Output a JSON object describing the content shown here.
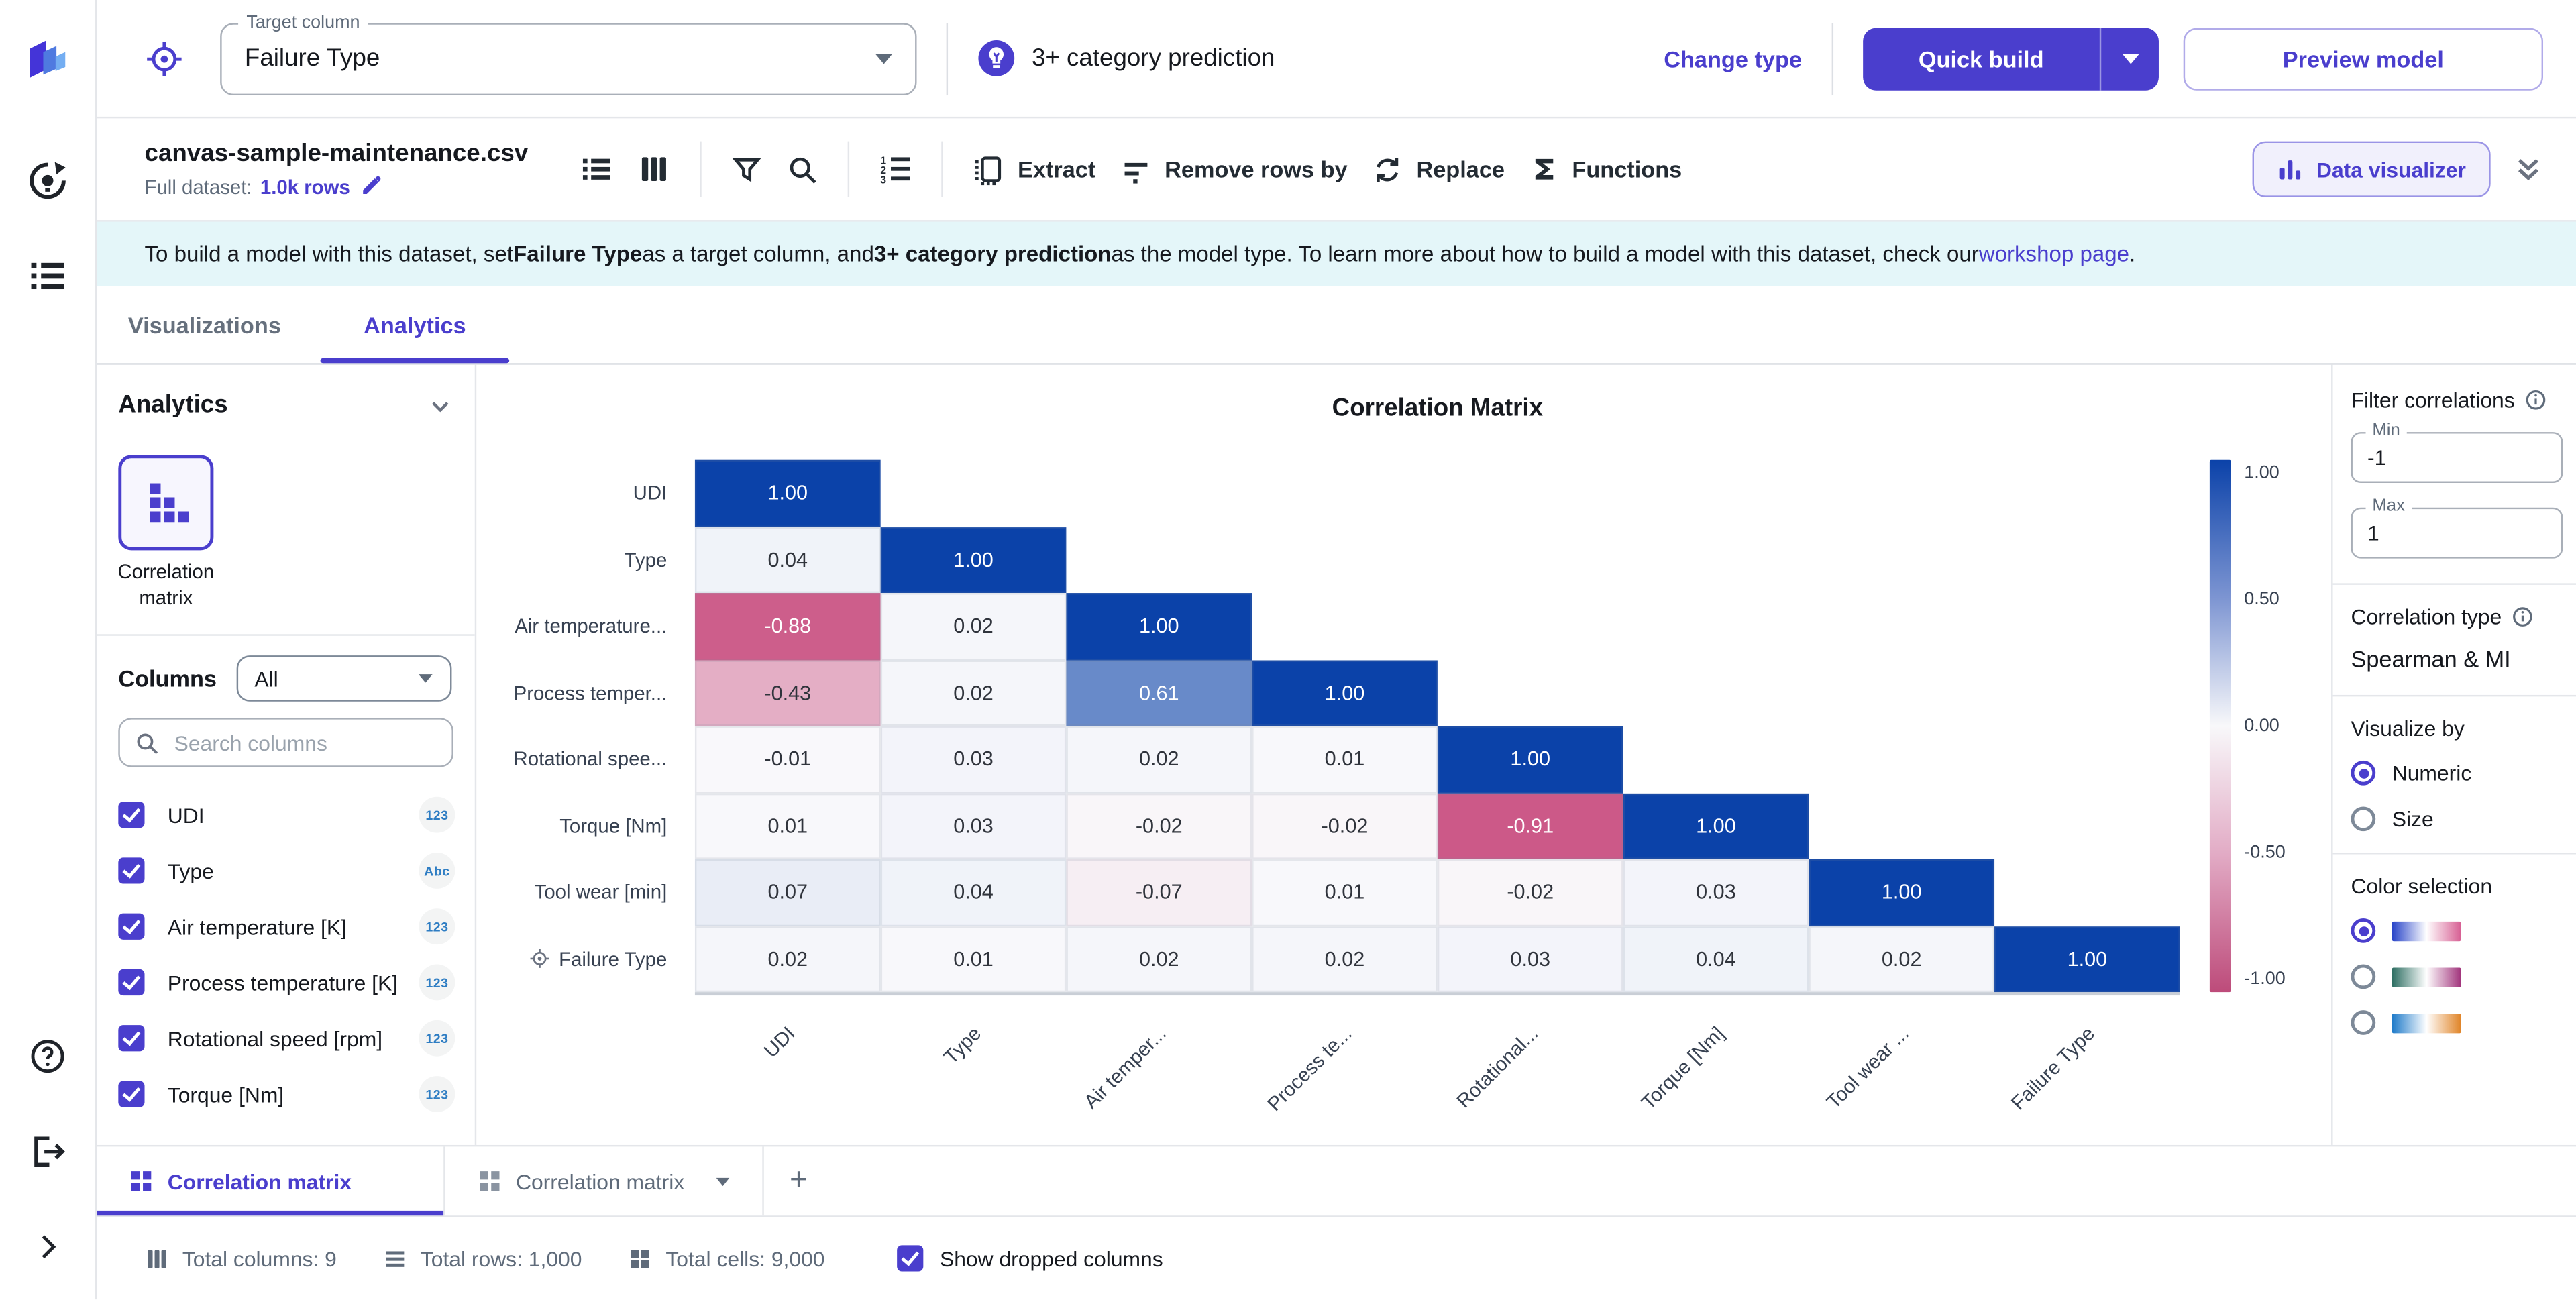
{
  "sidebar": {
    "icons": [
      "canvas-logo",
      "autopilot",
      "datasets-list",
      "help",
      "logout",
      "expand"
    ]
  },
  "header": {
    "target_field": {
      "label": "Target column",
      "value": "Failure Type"
    },
    "model_type": "3+ category prediction",
    "change_type_label": "Change type",
    "quick_build_label": "Quick build",
    "preview_model_label": "Preview model"
  },
  "toolbar": {
    "dataset_name": "canvas-sample-maintenance.csv",
    "full_dataset_label": "Full dataset:",
    "rows_link": "1.0k rows",
    "extract_label": "Extract",
    "remove_rows_label": "Remove rows by",
    "replace_label": "Replace",
    "functions_label": "Functions",
    "data_visualizer_label": "Data visualizer"
  },
  "banner": {
    "segments": [
      {
        "text": "To build a model with this dataset, set ",
        "style": "normal"
      },
      {
        "text": "Failure Type",
        "style": "bold"
      },
      {
        "text": " as a target column, and ",
        "style": "normal"
      },
      {
        "text": "3+ category prediction",
        "style": "bold"
      },
      {
        "text": " as the model type. To learn more about how to build a model with this dataset, check our ",
        "style": "normal"
      },
      {
        "text": "workshop page",
        "style": "link"
      },
      {
        "text": ".",
        "style": "normal"
      }
    ]
  },
  "tabs": [
    {
      "label": "Visualizations",
      "active": false
    },
    {
      "label": "Analytics",
      "active": true
    }
  ],
  "left_panel": {
    "title": "Analytics",
    "card_label": "Correlation matrix",
    "columns_label": "Columns",
    "columns_filter_value": "All",
    "search_placeholder": "Search columns",
    "columns": [
      {
        "name": "UDI",
        "type": "123",
        "checked": true
      },
      {
        "name": "Type",
        "type": "Abc",
        "checked": true
      },
      {
        "name": "Air temperature [K]",
        "type": "123",
        "checked": true
      },
      {
        "name": "Process temperature [K]",
        "type": "123",
        "checked": true
      },
      {
        "name": "Rotational speed [rpm]",
        "type": "123",
        "checked": true
      },
      {
        "name": "Torque [Nm]",
        "type": "123",
        "checked": true
      }
    ]
  },
  "chart_data": {
    "type": "heatmap",
    "title": "Correlation Matrix",
    "row_labels": [
      "UDI",
      "Type",
      "Air temperature...",
      "Process temper...",
      "Rotational spee...",
      "Torque [Nm]",
      "Tool wear [min]",
      "Failure Type"
    ],
    "col_labels": [
      "UDI",
      "Type",
      "Air temper...",
      "Process te...",
      "Rotational...",
      "Torque [Nm]",
      "Tool wear ...",
      "Failure Type"
    ],
    "target_row": "Failure Type",
    "matrix": [
      [
        1.0
      ],
      [
        0.04,
        1.0
      ],
      [
        -0.88,
        0.02,
        1.0
      ],
      [
        -0.43,
        0.02,
        0.61,
        1.0
      ],
      [
        -0.01,
        0.03,
        0.02,
        0.01,
        1.0
      ],
      [
        0.01,
        0.03,
        -0.02,
        -0.02,
        -0.91,
        1.0
      ],
      [
        0.07,
        0.04,
        -0.07,
        0.01,
        -0.02,
        0.03,
        1.0
      ],
      [
        0.02,
        0.01,
        0.02,
        0.02,
        0.03,
        0.04,
        0.02,
        1.0
      ]
    ],
    "value_range": [
      -1,
      1
    ],
    "colorbar_ticks": [
      "1.00",
      "0.50",
      "0.00",
      "-0.50",
      "-1.00"
    ],
    "colors": {
      "positive_end": "#0b42a9",
      "negative_end": "#c7497c",
      "neutral": "#fafafc"
    },
    "legend_position": "right"
  },
  "right_panel": {
    "filter_title": "Filter correlations",
    "min_field": {
      "label": "Min",
      "value": "-1"
    },
    "max_field": {
      "label": "Max",
      "value": "1"
    },
    "correlation_type_label": "Correlation type",
    "correlation_type_value": "Spearman & MI",
    "visualize_by_label": "Visualize by",
    "visualize_options": [
      {
        "label": "Numeric",
        "selected": true
      },
      {
        "label": "Size",
        "selected": false
      }
    ],
    "color_selection_label": "Color selection",
    "color_options": [
      {
        "selected": true,
        "gradient": [
          "#2743c8",
          "#ffffff",
          "#d75f93"
        ]
      },
      {
        "selected": false,
        "gradient": [
          "#2d6e62",
          "#ffffff",
          "#a1347c"
        ]
      },
      {
        "selected": false,
        "gradient": [
          "#1e7ac9",
          "#ffffff",
          "#e08427"
        ]
      }
    ]
  },
  "bottom_tabs": {
    "tabs": [
      {
        "label": "Correlation matrix",
        "active": true
      },
      {
        "label": "Correlation matrix",
        "active": false
      }
    ],
    "add_label": "+"
  },
  "status_bar": {
    "items": [
      {
        "icon": "columns-icon",
        "label": "Total columns: 9"
      },
      {
        "icon": "rows-icon",
        "label": "Total rows: 1,000"
      },
      {
        "icon": "cells-icon",
        "label": "Total cells: 9,000"
      }
    ],
    "show_dropped_label": "Show dropped columns",
    "show_dropped_checked": true
  },
  "theme": {
    "purple": "#4a3ecd",
    "banner_bg": "#e4f6f9",
    "text_dark": "#16191f",
    "text_gray": "#5f6b7a"
  }
}
